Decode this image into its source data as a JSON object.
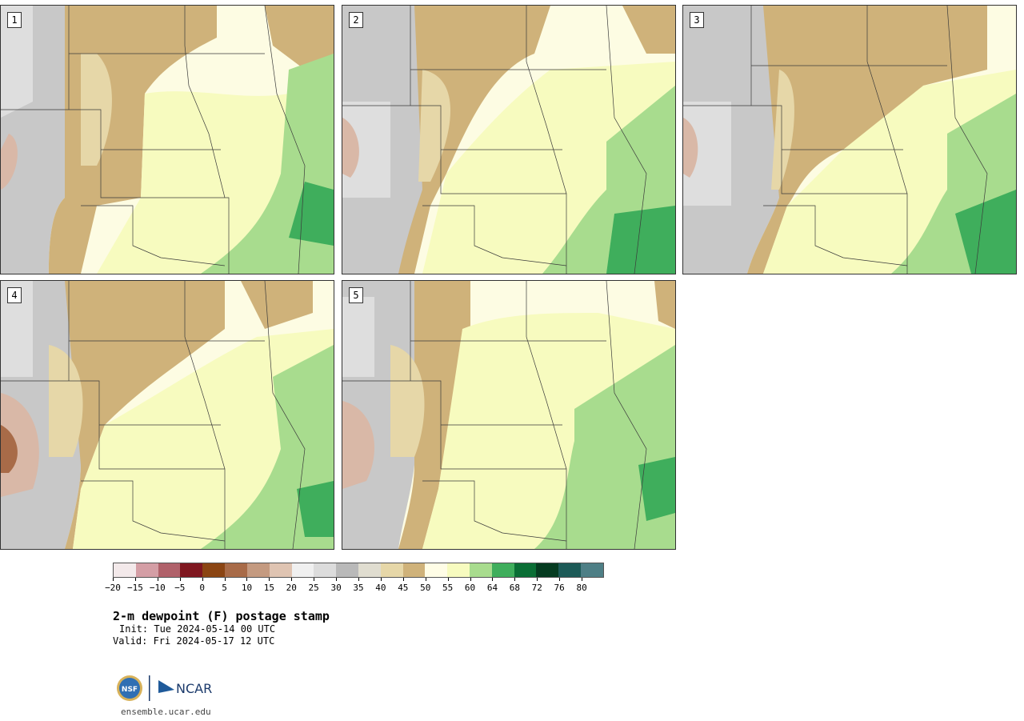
{
  "title": "2-m dewpoint (F) postage stamp",
  "init": "Init: Tue 2024-05-14 00 UTC",
  "valid": "Valid: Fri 2024-05-17 12 UTC",
  "website": "ensemble.ucar.edu",
  "logo": {
    "left_text": "NSF",
    "right_text": "NCAR"
  },
  "panels": [
    {
      "label": "1"
    },
    {
      "label": "2"
    },
    {
      "label": "3"
    },
    {
      "label": "4"
    },
    {
      "label": "5"
    }
  ],
  "colorbar": {
    "colors": [
      "#f3e9ea",
      "#d49ea5",
      "#b0616a",
      "#7f1720",
      "#8b4513",
      "#a86b48",
      "#c49a80",
      "#dfc4b2",
      "#f0f0f0",
      "#dcdcdc",
      "#b9b9b9",
      "#e0ddd0",
      "#e6d7a8",
      "#cfb27a",
      "#fffde6",
      "#f7fbbf",
      "#a8dc8e",
      "#3fae5c",
      "#0a6e35",
      "#053b20",
      "#1c5a57",
      "#4e7f86"
    ],
    "tick_labels": [
      "−20",
      "−15",
      "−10",
      "−5",
      "0",
      "5",
      "10",
      "15",
      "20",
      "25",
      "30",
      "35",
      "40",
      "45",
      "50",
      "55",
      "60",
      "64",
      "68",
      "72",
      "76",
      "80"
    ]
  }
}
